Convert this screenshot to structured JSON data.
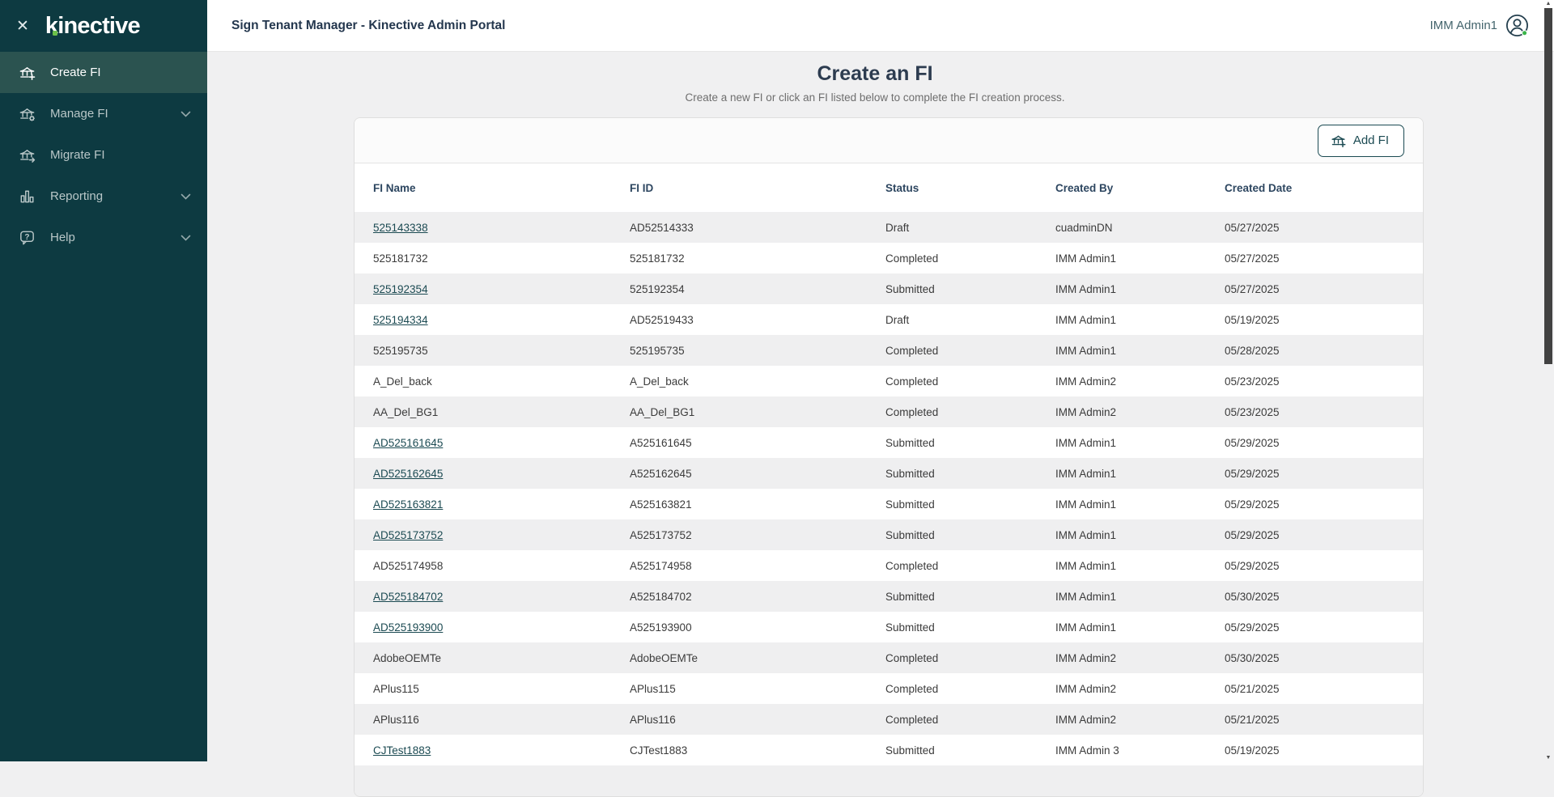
{
  "colors": {
    "sidebar_bg": "#0d3a41",
    "sidebar_active_bg": "#2b5350",
    "brand_green": "#6cc04a",
    "teal_dark": "#1b4a52",
    "navy_heading": "#2d3c50",
    "page_bg": "#f0f0f1",
    "row_stripe": "#efeff0",
    "online_dot_green": "#3bb54a"
  },
  "sidebar": {
    "logo_text": "kinective",
    "close_icon": "close-icon",
    "items": [
      {
        "label": "Create FI",
        "icon": "bank-plus-icon",
        "active": true,
        "expandable": false
      },
      {
        "label": "Manage FI",
        "icon": "bank-gear-icon",
        "active": false,
        "expandable": true
      },
      {
        "label": "Migrate FI",
        "icon": "bank-arrow-icon",
        "active": false,
        "expandable": false
      },
      {
        "label": "Reporting",
        "icon": "bar-chart-icon",
        "active": false,
        "expandable": true
      },
      {
        "label": "Help",
        "icon": "help-bubble-icon",
        "active": false,
        "expandable": true
      }
    ]
  },
  "topbar": {
    "title": "Sign Tenant Manager - Kinective Admin Portal",
    "user_name": "IMM Admin1",
    "user_icon": "user-circle-icon",
    "user_status": "online"
  },
  "main": {
    "title": "Create an FI",
    "subtitle": "Create a new FI or click an FI listed below to complete the FI creation process.",
    "add_fi_label": "Add FI",
    "table": {
      "headers": [
        "FI Name",
        "FI ID",
        "Status",
        "Created By",
        "Created Date"
      ],
      "rows": [
        {
          "fi_name": "525143338",
          "link": true,
          "fi_id": "AD52514333",
          "status": "Draft",
          "created_by": "cuadminDN",
          "created_date": "05/27/2025"
        },
        {
          "fi_name": "525181732",
          "link": false,
          "fi_id": "525181732",
          "status": "Completed",
          "created_by": "IMM Admin1",
          "created_date": "05/27/2025"
        },
        {
          "fi_name": "525192354",
          "link": true,
          "fi_id": "525192354",
          "status": "Submitted",
          "created_by": "IMM Admin1",
          "created_date": "05/27/2025"
        },
        {
          "fi_name": "525194334",
          "link": true,
          "fi_id": "AD52519433",
          "status": "Draft",
          "created_by": "IMM Admin1",
          "created_date": "05/19/2025"
        },
        {
          "fi_name": "525195735",
          "link": false,
          "fi_id": "525195735",
          "status": "Completed",
          "created_by": "IMM Admin1",
          "created_date": "05/28/2025"
        },
        {
          "fi_name": "A_Del_back",
          "link": false,
          "fi_id": "A_Del_back",
          "status": "Completed",
          "created_by": "IMM Admin2",
          "created_date": "05/23/2025"
        },
        {
          "fi_name": "AA_Del_BG1",
          "link": false,
          "fi_id": "AA_Del_BG1",
          "status": "Completed",
          "created_by": "IMM Admin2",
          "created_date": "05/23/2025"
        },
        {
          "fi_name": "AD525161645",
          "link": true,
          "fi_id": "A525161645",
          "status": "Submitted",
          "created_by": "IMM Admin1",
          "created_date": "05/29/2025"
        },
        {
          "fi_name": "AD525162645",
          "link": true,
          "fi_id": "A525162645",
          "status": "Submitted",
          "created_by": "IMM Admin1",
          "created_date": "05/29/2025"
        },
        {
          "fi_name": "AD525163821",
          "link": true,
          "fi_id": "A525163821",
          "status": "Submitted",
          "created_by": "IMM Admin1",
          "created_date": "05/29/2025"
        },
        {
          "fi_name": "AD525173752",
          "link": true,
          "fi_id": "A525173752",
          "status": "Submitted",
          "created_by": "IMM Admin1",
          "created_date": "05/29/2025"
        },
        {
          "fi_name": "AD525174958",
          "link": false,
          "fi_id": "A525174958",
          "status": "Completed",
          "created_by": "IMM Admin1",
          "created_date": "05/29/2025"
        },
        {
          "fi_name": "AD525184702",
          "link": true,
          "fi_id": "A525184702",
          "status": "Submitted",
          "created_by": "IMM Admin1",
          "created_date": "05/30/2025"
        },
        {
          "fi_name": "AD525193900",
          "link": true,
          "fi_id": "A525193900",
          "status": "Submitted",
          "created_by": "IMM Admin1",
          "created_date": "05/29/2025"
        },
        {
          "fi_name": "AdobeOEMTe",
          "link": false,
          "fi_id": "AdobeOEMTe",
          "status": "Completed",
          "created_by": "IMM Admin2",
          "created_date": "05/30/2025"
        },
        {
          "fi_name": "APlus115",
          "link": false,
          "fi_id": "APlus115",
          "status": "Completed",
          "created_by": "IMM Admin2",
          "created_date": "05/21/2025"
        },
        {
          "fi_name": "APlus116",
          "link": false,
          "fi_id": "APlus116",
          "status": "Completed",
          "created_by": "IMM Admin2",
          "created_date": "05/21/2025"
        },
        {
          "fi_name": "CJTest1883",
          "link": true,
          "fi_id": "CJTest1883",
          "status": "Submitted",
          "created_by": "IMM Admin 3",
          "created_date": "05/19/2025"
        }
      ]
    }
  }
}
